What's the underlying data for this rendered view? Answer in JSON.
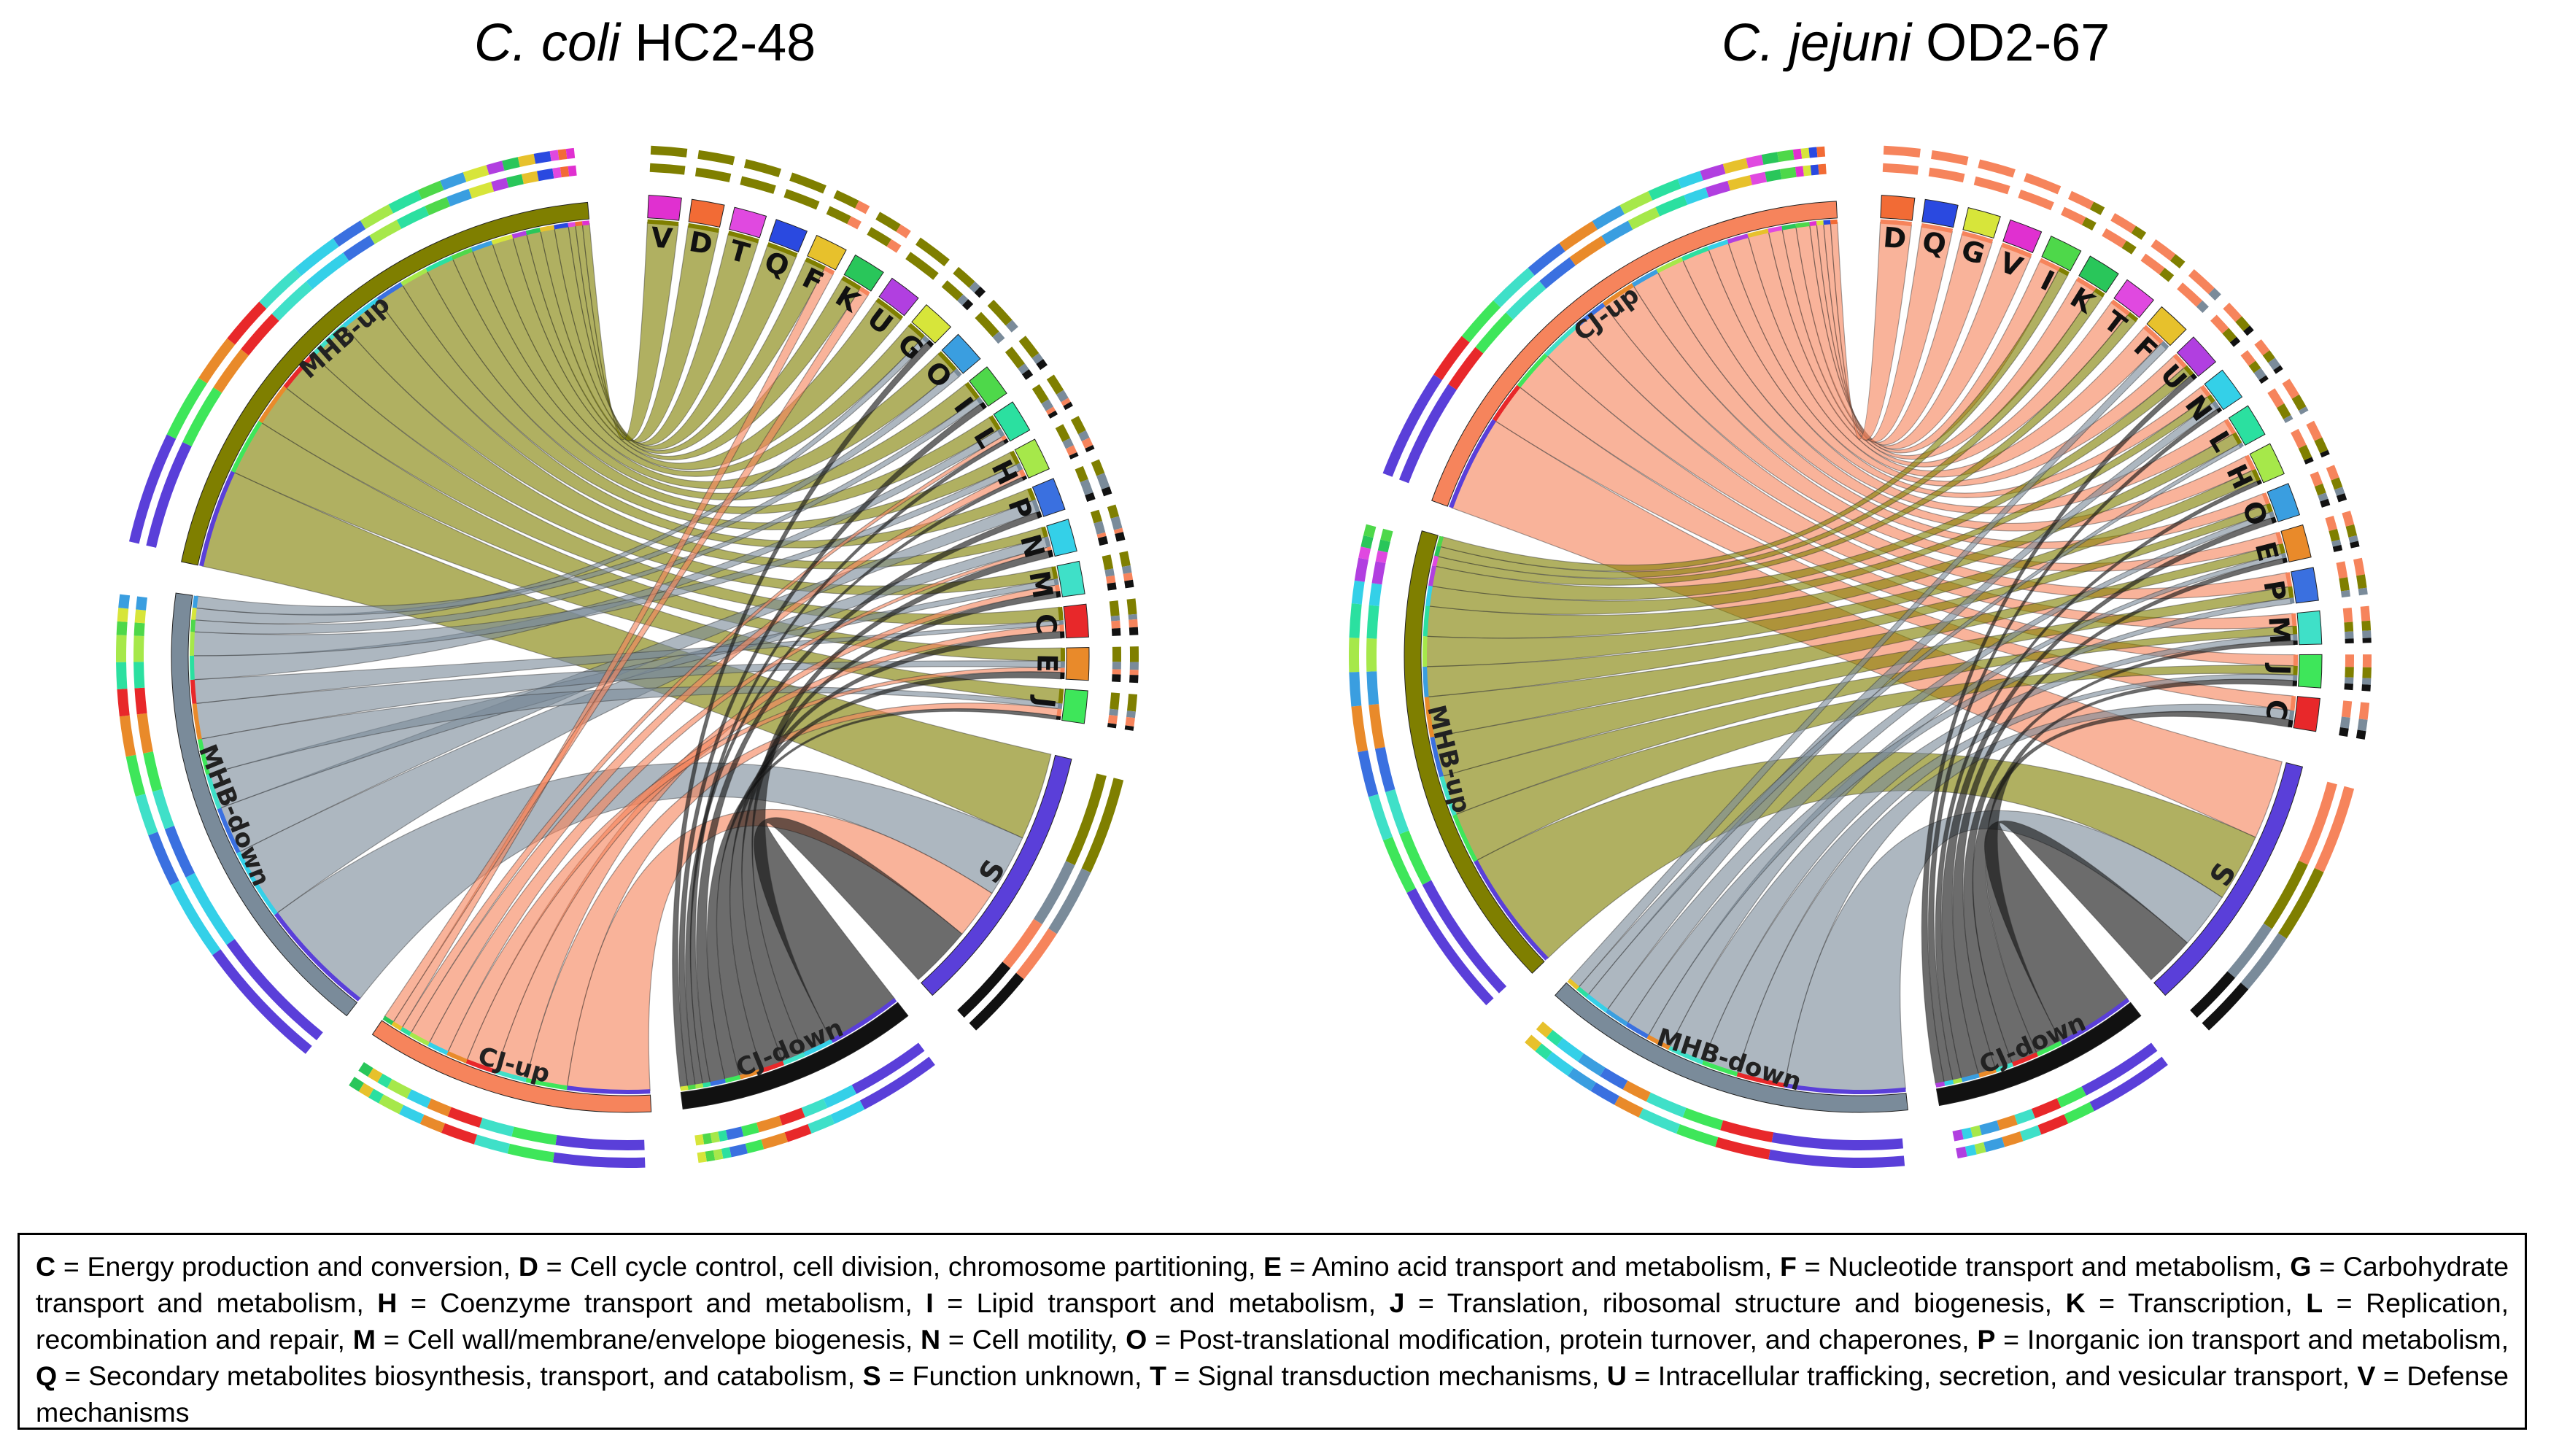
{
  "titles": {
    "left": {
      "species": "C. coli",
      "strain": "HC2-48"
    },
    "right": {
      "species": "C. jejuni",
      "strain": "OD2-67"
    }
  },
  "colors": {
    "MHB-up": "#7f7f00",
    "MHB-down": "#7a8b9a",
    "CJ-up": "#f6845c",
    "CJ-down": "#111111",
    "S": "#5a3fd9",
    "C": "#e8282a",
    "D": "#f26b35",
    "E": "#e98a2a",
    "F": "#e7c12c",
    "G": "#d7e53a",
    "H": "#a6e84a",
    "I": "#4ed84a",
    "J": "#3ee65a",
    "K": "#29c65a",
    "L": "#2be0a0",
    "M": "#3fe0c8",
    "N": "#34d0e8",
    "O": "#3a9ee0",
    "P": "#3a70e0",
    "Q": "#2a49e0",
    "T": "#e049e0",
    "U": "#b13fe0",
    "V": "#e030d0"
  },
  "diagrams": [
    {
      "id": "left",
      "groups": [
        {
          "label": "MHB-up",
          "start": 282,
          "end": 355
        },
        {
          "label": "MHB-down",
          "start": 218,
          "end": 278
        },
        {
          "label": "CJ-up",
          "start": 177,
          "end": 214
        },
        {
          "label": "CJ-down",
          "start": 142,
          "end": 173
        },
        {
          "label": "S",
          "start": 103,
          "end": 138
        }
      ],
      "categories": [
        "V",
        "D",
        "T",
        "Q",
        "F",
        "K",
        "U",
        "G",
        "O",
        "I",
        "L",
        "H",
        "P",
        "N",
        "M",
        "C",
        "E",
        "J"
      ],
      "cat_start": 2,
      "cat_end": 99,
      "links": [
        [
          "MHB-up",
          "S",
          14
        ],
        [
          "MHB-up",
          "J",
          8
        ],
        [
          "MHB-up",
          "E",
          6
        ],
        [
          "MHB-up",
          "C",
          6
        ],
        [
          "MHB-up",
          "M",
          6
        ],
        [
          "MHB-up",
          "N",
          6
        ],
        [
          "MHB-up",
          "P",
          4
        ],
        [
          "MHB-up",
          "H",
          4
        ],
        [
          "MHB-up",
          "L",
          4
        ],
        [
          "MHB-up",
          "I",
          3
        ],
        [
          "MHB-up",
          "O",
          3
        ],
        [
          "MHB-up",
          "G",
          3
        ],
        [
          "MHB-up",
          "U",
          2
        ],
        [
          "MHB-up",
          "K",
          2
        ],
        [
          "MHB-up",
          "F",
          2
        ],
        [
          "MHB-up",
          "Q",
          2
        ],
        [
          "MHB-up",
          "T",
          1
        ],
        [
          "MHB-up",
          "D",
          1
        ],
        [
          "MHB-up",
          "V",
          1
        ],
        [
          "MHB-down",
          "S",
          10
        ],
        [
          "MHB-down",
          "N",
          6
        ],
        [
          "MHB-down",
          "P",
          4
        ],
        [
          "MHB-down",
          "M",
          3
        ],
        [
          "MHB-down",
          "J",
          3
        ],
        [
          "MHB-down",
          "E",
          3
        ],
        [
          "MHB-down",
          "C",
          2
        ],
        [
          "MHB-down",
          "L",
          2
        ],
        [
          "MHB-down",
          "H",
          2
        ],
        [
          "MHB-down",
          "I",
          1
        ],
        [
          "MHB-down",
          "G",
          1
        ],
        [
          "MHB-down",
          "O",
          1
        ],
        [
          "CJ-up",
          "S",
          8
        ],
        [
          "CJ-up",
          "J",
          4
        ],
        [
          "CJ-up",
          "M",
          3
        ],
        [
          "CJ-up",
          "C",
          3
        ],
        [
          "CJ-up",
          "E",
          2
        ],
        [
          "CJ-up",
          "N",
          2
        ],
        [
          "CJ-up",
          "H",
          2
        ],
        [
          "CJ-up",
          "L",
          1
        ],
        [
          "CJ-up",
          "F",
          1
        ],
        [
          "CJ-up",
          "K",
          1
        ],
        [
          "CJ-down",
          "S",
          10
        ],
        [
          "CJ-down",
          "N",
          4
        ],
        [
          "CJ-down",
          "M",
          3
        ],
        [
          "CJ-down",
          "C",
          3
        ],
        [
          "CJ-down",
          "E",
          3
        ],
        [
          "CJ-down",
          "J",
          2
        ],
        [
          "CJ-down",
          "P",
          2
        ],
        [
          "CJ-down",
          "L",
          1
        ],
        [
          "CJ-down",
          "H",
          1
        ],
        [
          "CJ-down",
          "I",
          1
        ],
        [
          "CJ-down",
          "G",
          1
        ]
      ]
    },
    {
      "id": "right",
      "groups": [
        {
          "label": "CJ-up",
          "start": 290,
          "end": 357
        },
        {
          "label": "MHB-up",
          "start": 226,
          "end": 286
        },
        {
          "label": "MHB-down",
          "start": 174,
          "end": 222
        },
        {
          "label": "CJ-down",
          "start": 142,
          "end": 170
        },
        {
          "label": "S",
          "start": 104,
          "end": 138
        }
      ],
      "categories": [
        "D",
        "Q",
        "G",
        "V",
        "I",
        "K",
        "T",
        "F",
        "U",
        "N",
        "L",
        "H",
        "O",
        "E",
        "P",
        "M",
        "J",
        "C"
      ],
      "cat_start": 2,
      "cat_end": 100,
      "links": [
        [
          "CJ-up",
          "S",
          14
        ],
        [
          "CJ-up",
          "C",
          6
        ],
        [
          "CJ-up",
          "J",
          6
        ],
        [
          "CJ-up",
          "M",
          6
        ],
        [
          "CJ-up",
          "P",
          5
        ],
        [
          "CJ-up",
          "E",
          5
        ],
        [
          "CJ-up",
          "O",
          4
        ],
        [
          "CJ-up",
          "H",
          4
        ],
        [
          "CJ-up",
          "L",
          4
        ],
        [
          "CJ-up",
          "N",
          3
        ],
        [
          "CJ-up",
          "U",
          3
        ],
        [
          "CJ-up",
          "F",
          3
        ],
        [
          "CJ-up",
          "T",
          2
        ],
        [
          "CJ-up",
          "K",
          2
        ],
        [
          "CJ-up",
          "I",
          2
        ],
        [
          "CJ-up",
          "V",
          1
        ],
        [
          "CJ-up",
          "G",
          1
        ],
        [
          "CJ-up",
          "Q",
          1
        ],
        [
          "CJ-up",
          "D",
          1
        ],
        [
          "MHB-up",
          "S",
          12
        ],
        [
          "MHB-up",
          "J",
          5
        ],
        [
          "MHB-up",
          "M",
          4
        ],
        [
          "MHB-up",
          "P",
          4
        ],
        [
          "MHB-up",
          "E",
          4
        ],
        [
          "MHB-up",
          "O",
          3
        ],
        [
          "MHB-up",
          "H",
          3
        ],
        [
          "MHB-up",
          "L",
          3
        ],
        [
          "MHB-up",
          "N",
          2
        ],
        [
          "MHB-up",
          "U",
          2
        ],
        [
          "MHB-up",
          "T",
          1
        ],
        [
          "MHB-up",
          "K",
          1
        ],
        [
          "MHB-up",
          "I",
          1
        ],
        [
          "MHB-down",
          "S",
          10
        ],
        [
          "MHB-down",
          "C",
          4
        ],
        [
          "MHB-down",
          "J",
          3
        ],
        [
          "MHB-down",
          "M",
          3
        ],
        [
          "MHB-down",
          "E",
          2
        ],
        [
          "MHB-down",
          "P",
          2
        ],
        [
          "MHB-down",
          "O",
          2
        ],
        [
          "MHB-down",
          "N",
          2
        ],
        [
          "MHB-down",
          "L",
          1
        ],
        [
          "MHB-down",
          "F",
          1
        ],
        [
          "CJ-down",
          "S",
          9
        ],
        [
          "CJ-down",
          "J",
          3
        ],
        [
          "CJ-down",
          "C",
          3
        ],
        [
          "CJ-down",
          "M",
          2
        ],
        [
          "CJ-down",
          "E",
          2
        ],
        [
          "CJ-down",
          "O",
          2
        ],
        [
          "CJ-down",
          "H",
          1
        ],
        [
          "CJ-down",
          "N",
          1
        ],
        [
          "CJ-down",
          "U",
          1
        ]
      ]
    }
  ],
  "legend": [
    [
      "C",
      "Energy production and conversion"
    ],
    [
      "D",
      "Cell cycle control, cell division, chromosome partitioning"
    ],
    [
      "E",
      "Amino acid transport and metabolism"
    ],
    [
      "F",
      "Nucleotide transport and metabolism"
    ],
    [
      "G",
      "Carbohydrate transport and metabolism"
    ],
    [
      "H",
      "Coenzyme transport and metabolism"
    ],
    [
      "I",
      "Lipid transport and metabolism"
    ],
    [
      "J",
      "Translation, ribosomal structure and biogenesis"
    ],
    [
      "K",
      "Transcription"
    ],
    [
      "L",
      "Replication, recombination and repair"
    ],
    [
      "M",
      "Cell wall/membrane/envelope biogenesis"
    ],
    [
      "N",
      "Cell motility"
    ],
    [
      "O",
      "Post-translational modification, protein turnover, and chaperones"
    ],
    [
      "P",
      "Inorganic ion transport and metabolism"
    ],
    [
      "Q",
      "Secondary metabolites biosynthesis, transport, and catabolism"
    ],
    [
      "S",
      "Function unknown"
    ],
    [
      "T",
      "Signal transduction mechanisms"
    ],
    [
      "U",
      "Intracellular trafficking, secretion, and vesicular transport"
    ],
    [
      "V",
      "Defense mechanisms"
    ]
  ]
}
